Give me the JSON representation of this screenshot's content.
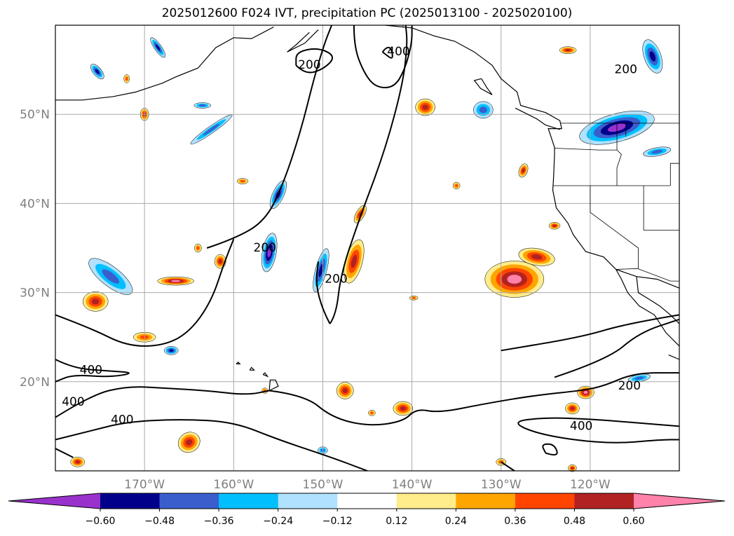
{
  "title": "2025012600 F024 IVT, precipitation PC (2025013100 - 2025020100)",
  "chart_data": {
    "type": "filled-contour map",
    "title": "2025012600 F024 IVT, precipitation PC (2025013100 - 2025020100)",
    "lon_range": [
      -180,
      -110
    ],
    "lat_range": [
      10,
      60
    ],
    "lat_ticks": [
      {
        "value": 20,
        "label": "20°N"
      },
      {
        "value": 30,
        "label": "30°N"
      },
      {
        "value": 40,
        "label": "40°N"
      },
      {
        "value": 50,
        "label": "50°N"
      }
    ],
    "lon_ticks": [
      {
        "value": -170,
        "label": "170°W"
      },
      {
        "value": -160,
        "label": "160°W"
      },
      {
        "value": -150,
        "label": "150°W"
      },
      {
        "value": -140,
        "label": "140°W"
      },
      {
        "value": -130,
        "label": "130°W"
      },
      {
        "value": -120,
        "label": "120°W"
      }
    ],
    "grid": true,
    "ivt_contour_levels": [
      200,
      400
    ],
    "ivt_contour_labels": [
      {
        "text": "200",
        "lon": -151.5,
        "lat": 55.5
      },
      {
        "text": "400",
        "lon": -141.5,
        "lat": 57.0
      },
      {
        "text": "200",
        "lon": -116.0,
        "lat": 55.0
      },
      {
        "text": "200",
        "lon": -156.5,
        "lat": 35.0
      },
      {
        "text": "200",
        "lon": -148.5,
        "lat": 31.5
      },
      {
        "text": "400",
        "lon": -176.0,
        "lat": 21.3
      },
      {
        "text": "400",
        "lon": -178.0,
        "lat": 17.7
      },
      {
        "text": "400",
        "lon": -172.5,
        "lat": 15.7
      },
      {
        "text": "200",
        "lon": -115.6,
        "lat": 19.5
      },
      {
        "text": "400",
        "lon": -121.0,
        "lat": 15.0
      }
    ],
    "colorbar": {
      "extend": "both",
      "boundaries": [
        -0.72,
        -0.6,
        -0.48,
        -0.36,
        -0.24,
        -0.12,
        0.12,
        0.24,
        0.36,
        0.48,
        0.6,
        0.72
      ],
      "ticks": [
        "−0.60",
        "−0.48",
        "−0.36",
        "−0.24",
        "−0.12",
        "0.12",
        "0.24",
        "0.36",
        "0.48",
        "0.60"
      ],
      "colors": [
        "#9932cc",
        "#00008b",
        "#3a5fcd",
        "#00bfff",
        "#b0e2ff",
        "#ffffff",
        "#ffec8b",
        "#ffa500",
        "#ff4500",
        "#b22222",
        "#ff82ab"
      ]
    }
  }
}
